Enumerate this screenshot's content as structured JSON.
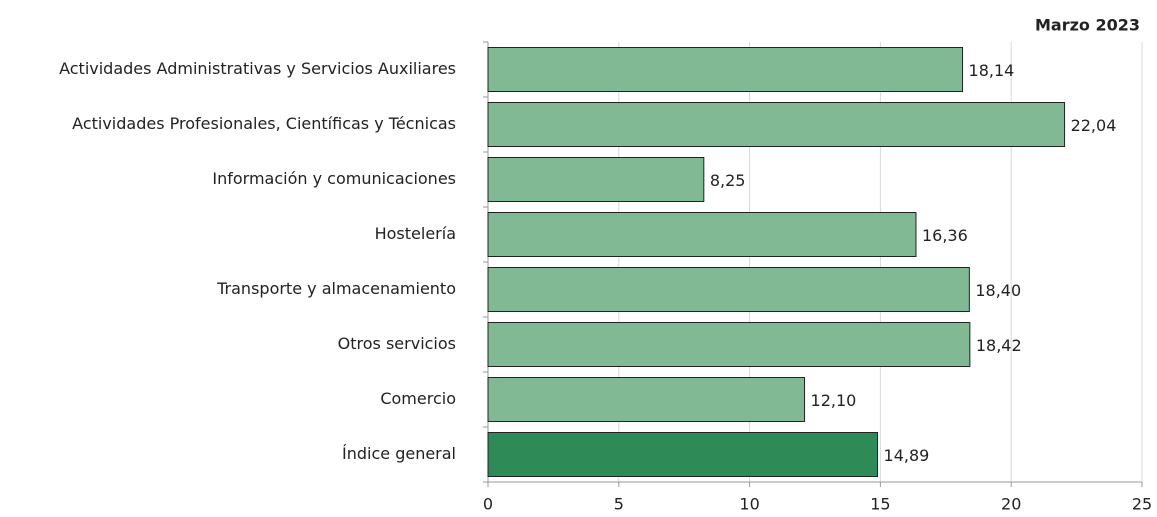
{
  "chart_data": {
    "type": "bar",
    "orientation": "horizontal",
    "title": "Marzo 2023",
    "categories": [
      "Actividades Administrativas y Servicios Auxiliares",
      "Actividades Profesionales, Científicas y Técnicas",
      "Información y comunicaciones",
      "Hostelería",
      "Transporte y almacenamiento",
      "Otros servicios",
      "Comercio",
      "Índice general"
    ],
    "values": [
      18.14,
      22.04,
      8.25,
      16.36,
      18.4,
      18.42,
      12.1,
      14.89
    ],
    "value_labels": [
      "18,14",
      "22,04",
      "8,25",
      "16,36",
      "18,40",
      "18,42",
      "12,10",
      "14,89"
    ],
    "colors": [
      "#80b994",
      "#80b994",
      "#80b994",
      "#80b994",
      "#80b994",
      "#80b994",
      "#80b994",
      "#2e8b57"
    ],
    "xlim": [
      0,
      25
    ],
    "xticks": [
      0,
      5,
      10,
      15,
      20,
      25
    ],
    "grid": true
  }
}
